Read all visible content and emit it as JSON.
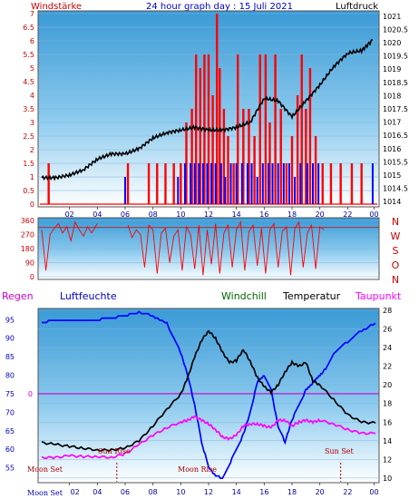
{
  "header": {
    "left": "Windstärke",
    "center": "24 hour graph day : 15 Juli 2021",
    "right": "Luftdruck"
  },
  "mid_labels": [
    "N",
    "W",
    "S",
    "O",
    "N"
  ],
  "bottom_legend": {
    "regen": "Regen",
    "luftfeuchte": "Luftfeuchte",
    "windchill": "Windchill",
    "temperatur": "Temperatur",
    "taupunkt": "Taupunkt"
  },
  "annotations": {
    "sun_rise": "Sun Rise",
    "sun_set": "Sun Set",
    "moon_set_left": "Moon Set",
    "moon_rise": "Moon Rise",
    "moon_set_axis": "Moon Set"
  },
  "colors": {
    "wind": "#ff0000",
    "gust": "#0000ff",
    "pressure": "#000000",
    "humidity": "#0000ff",
    "temperature": "#000000",
    "dewpoint": "#ff00ff",
    "windchill": "#006600",
    "bg_top": "#3fa0d8",
    "bg_bottom": "#ffffff"
  },
  "chart_data": [
    {
      "type": "bar",
      "title": "24 hour graph day : 15 Juli 2021",
      "x_ticks": [
        "02",
        "04",
        "06",
        "08",
        "10",
        "12",
        "14",
        "16",
        "18",
        "20",
        "22",
        "00"
      ],
      "y_left_label": "Windstärke",
      "y_left_ticks": [
        "0",
        "0.5",
        "1",
        "1.5",
        "2",
        "2.5",
        "3",
        "3.5",
        "4",
        "4.5",
        "5",
        "5.5",
        "6",
        "6.5",
        "7"
      ],
      "y_left_lim": [
        0,
        7
      ],
      "y_right_label": "Luftdruck",
      "y_right_ticks": [
        "1014",
        "1014.5",
        "1015",
        "1015.5",
        "1016",
        "1016.5",
        "1017",
        "1017.5",
        "1018",
        "1018.5",
        "1019",
        "1019.5",
        "1020",
        "1020.5",
        "1021"
      ],
      "y_right_lim": [
        1013.8,
        1021.2
      ],
      "pressure_series": {
        "hours": [
          0,
          1,
          2,
          3,
          4,
          5,
          6,
          7,
          8,
          9,
          10,
          11,
          12,
          13,
          14,
          15,
          16,
          17,
          18,
          19,
          20,
          21,
          22,
          23,
          23.8
        ],
        "values": [
          1014.9,
          1014.9,
          1015.0,
          1015.2,
          1015.6,
          1015.8,
          1015.8,
          1016.0,
          1016.4,
          1016.6,
          1016.7,
          1016.8,
          1016.7,
          1016.7,
          1016.8,
          1017.0,
          1017.9,
          1017.8,
          1017.2,
          1017.8,
          1018.4,
          1019.1,
          1019.6,
          1019.7,
          1020.1
        ]
      },
      "wind_red_bars": [
        {
          "hour": 0.5,
          "v": 1.5
        },
        {
          "hour": 6.2,
          "v": 1.5
        },
        {
          "hour": 7.7,
          "v": 1.5
        },
        {
          "hour": 8.3,
          "v": 1.5
        },
        {
          "hour": 8.9,
          "v": 1.5
        },
        {
          "hour": 9.5,
          "v": 1.5
        },
        {
          "hour": 10.0,
          "v": 1.5
        },
        {
          "hour": 10.4,
          "v": 3.0
        },
        {
          "hour": 10.8,
          "v": 3.5
        },
        {
          "hour": 11.1,
          "v": 5.5
        },
        {
          "hour": 11.4,
          "v": 5.0
        },
        {
          "hour": 11.7,
          "v": 5.5
        },
        {
          "hour": 12.0,
          "v": 5.5
        },
        {
          "hour": 12.3,
          "v": 4.0
        },
        {
          "hour": 12.6,
          "v": 7.0
        },
        {
          "hour": 12.8,
          "v": 5.0
        },
        {
          "hour": 13.1,
          "v": 3.5
        },
        {
          "hour": 13.4,
          "v": 2.5
        },
        {
          "hour": 13.8,
          "v": 1.5
        },
        {
          "hour": 14.1,
          "v": 5.5
        },
        {
          "hour": 14.5,
          "v": 3.5
        },
        {
          "hour": 14.9,
          "v": 3.5
        },
        {
          "hour": 15.3,
          "v": 2.5
        },
        {
          "hour": 15.7,
          "v": 5.5
        },
        {
          "hour": 16.1,
          "v": 5.5
        },
        {
          "hour": 16.4,
          "v": 3.0
        },
        {
          "hour": 16.8,
          "v": 5.5
        },
        {
          "hour": 17.2,
          "v": 3.5
        },
        {
          "hour": 17.6,
          "v": 1.5
        },
        {
          "hour": 18.0,
          "v": 2.5
        },
        {
          "hour": 18.4,
          "v": 4.0
        },
        {
          "hour": 18.7,
          "v": 5.5
        },
        {
          "hour": 19.0,
          "v": 3.5
        },
        {
          "hour": 19.3,
          "v": 5.0
        },
        {
          "hour": 19.7,
          "v": 2.5
        },
        {
          "hour": 20.2,
          "v": 1.5
        },
        {
          "hour": 20.8,
          "v": 1.5
        },
        {
          "hour": 21.5,
          "v": 1.5
        },
        {
          "hour": 22.3,
          "v": 1.5
        },
        {
          "hour": 23.0,
          "v": 1.5
        }
      ],
      "wind_blue_bars": [
        {
          "hour": 6.0,
          "v": 1.0
        },
        {
          "hour": 9.8,
          "v": 1.0
        },
        {
          "hour": 10.3,
          "v": 1.5
        },
        {
          "hour": 10.7,
          "v": 1.5
        },
        {
          "hour": 11.0,
          "v": 1.5
        },
        {
          "hour": 11.3,
          "v": 1.5
        },
        {
          "hour": 11.6,
          "v": 1.5
        },
        {
          "hour": 11.9,
          "v": 1.5
        },
        {
          "hour": 12.2,
          "v": 1.5
        },
        {
          "hour": 12.5,
          "v": 1.5
        },
        {
          "hour": 12.9,
          "v": 1.5
        },
        {
          "hour": 13.2,
          "v": 1.0
        },
        {
          "hour": 13.6,
          "v": 1.5
        },
        {
          "hour": 14.0,
          "v": 1.5
        },
        {
          "hour": 14.4,
          "v": 1.5
        },
        {
          "hour": 14.8,
          "v": 1.5
        },
        {
          "hour": 15.1,
          "v": 1.5
        },
        {
          "hour": 15.5,
          "v": 1.0
        },
        {
          "hour": 15.9,
          "v": 1.5
        },
        {
          "hour": 16.3,
          "v": 1.5
        },
        {
          "hour": 16.6,
          "v": 1.5
        },
        {
          "hour": 17.0,
          "v": 1.5
        },
        {
          "hour": 17.4,
          "v": 1.5
        },
        {
          "hour": 17.8,
          "v": 1.5
        },
        {
          "hour": 18.2,
          "v": 1.0
        },
        {
          "hour": 18.6,
          "v": 1.5
        },
        {
          "hour": 19.1,
          "v": 1.5
        },
        {
          "hour": 19.5,
          "v": 1.5
        },
        {
          "hour": 19.9,
          "v": 1.5
        },
        {
          "hour": 23.8,
          "v": 1.5
        }
      ]
    },
    {
      "type": "line",
      "title": "Wind direction",
      "y_ticks": [
        "360",
        "270",
        "180",
        "90",
        "0"
      ],
      "y_lim": [
        0,
        360
      ],
      "reference_line": 315,
      "direction_samples": {
        "hours": [
          0.0,
          0.3,
          0.6,
          0.9,
          1.2,
          1.5,
          1.8,
          2.1,
          2.4,
          2.7,
          3.0,
          3.3,
          3.6,
          4.0,
          6.2,
          6.5,
          6.8,
          7.1,
          7.4,
          7.7,
          8.0,
          8.3,
          8.6,
          8.9,
          9.2,
          9.5,
          9.8,
          10.1,
          10.4,
          10.7,
          11.0,
          11.3,
          11.6,
          11.9,
          12.2,
          12.5,
          12.8,
          13.1,
          13.4,
          13.7,
          14.0,
          14.3,
          14.6,
          14.9,
          15.2,
          15.5,
          15.8,
          16.1,
          16.4,
          16.7,
          17.0,
          17.3,
          17.6,
          17.9,
          18.2,
          18.5,
          18.8,
          19.1,
          19.4,
          19.7,
          20.0,
          20.3
        ],
        "values": [
          300,
          40,
          270,
          310,
          340,
          280,
          320,
          230,
          350,
          300,
          260,
          320,
          280,
          340,
          330,
          250,
          300,
          270,
          60,
          330,
          300,
          20,
          280,
          310,
          90,
          260,
          300,
          40,
          320,
          270,
          50,
          330,
          10,
          300,
          80,
          340,
          20,
          280,
          330,
          60,
          300,
          350,
          40,
          290,
          330,
          70,
          310,
          20,
          300,
          340,
          60,
          290,
          320,
          10,
          310,
          350,
          60,
          280,
          330,
          50,
          320,
          300
        ]
      }
    },
    {
      "type": "line",
      "y_left_ticks": [
        "55",
        "60",
        "65",
        "70",
        "75",
        "80",
        "85",
        "90",
        "95"
      ],
      "y_left_lim": [
        51,
        98
      ],
      "y_right_ticks": [
        "10",
        "12",
        "14",
        "16",
        "18",
        "20",
        "22",
        "24",
        "26",
        "28"
      ],
      "y_right_lim": [
        9.5,
        28.2
      ],
      "zero_label": "0",
      "regen_level": 75,
      "x_ticks": [
        "02",
        "04",
        "06",
        "08",
        "10",
        "12",
        "14",
        "16",
        "18",
        "20",
        "22",
        "00"
      ],
      "sun_rise_hour": 5.4,
      "sun_set_hour": 21.5,
      "series": [
        {
          "name": "Luftfeuchte",
          "axis": "left",
          "hours": [
            0,
            1,
            2,
            3,
            4,
            5,
            6,
            7,
            8,
            9,
            10,
            10.5,
            11,
            11.5,
            12,
            12.5,
            13,
            13.5,
            14,
            14.5,
            15,
            15.5,
            16,
            16.5,
            17,
            17.5,
            18,
            18.5,
            19,
            19.5,
            20,
            20.5,
            21,
            22,
            23,
            24
          ],
          "values": [
            94,
            95,
            95,
            95,
            95,
            95.5,
            96,
            97,
            96,
            94,
            86,
            80,
            72,
            62,
            55,
            53,
            52,
            56,
            60,
            64,
            70,
            78,
            80,
            76,
            66,
            62,
            68,
            72,
            76,
            78,
            80,
            82,
            86,
            89,
            92,
            94
          ]
        },
        {
          "name": "Temperatur",
          "axis": "right",
          "hours": [
            0,
            1,
            2,
            3,
            4,
            5,
            6,
            7,
            8,
            9,
            10,
            10.5,
            11,
            11.5,
            12,
            12.5,
            13,
            13.5,
            14,
            14.5,
            15,
            15.5,
            16,
            16.5,
            17,
            17.5,
            18,
            18.5,
            19,
            19.5,
            20,
            21,
            22,
            23,
            24
          ],
          "values": [
            13.8,
            13.6,
            13.4,
            13.2,
            13.0,
            13.0,
            13.2,
            14.0,
            15.6,
            17.4,
            19.0,
            20.8,
            23.0,
            24.8,
            25.8,
            25.0,
            23.5,
            22.4,
            22.6,
            23.8,
            22.5,
            20.8,
            19.8,
            19.2,
            20.0,
            21.4,
            22.4,
            22.0,
            22.4,
            20.4,
            20.0,
            18.4,
            16.8,
            16.0,
            15.9
          ]
        },
        {
          "name": "Taupunkt",
          "axis": "right",
          "hours": [
            0,
            1,
            2,
            3,
            4,
            5,
            6,
            7,
            8,
            9,
            10,
            10.5,
            11,
            11.5,
            12,
            12.5,
            13,
            13.5,
            14,
            14.5,
            15,
            15.5,
            16,
            16.5,
            17,
            17.5,
            18,
            18.5,
            19,
            19.5,
            20,
            21,
            22,
            23,
            24
          ],
          "values": [
            12.2,
            12.2,
            12.4,
            12.3,
            12.3,
            12.2,
            12.6,
            13.6,
            14.6,
            15.4,
            16.0,
            16.2,
            16.6,
            16.2,
            15.8,
            15.2,
            14.4,
            14.2,
            14.6,
            15.6,
            15.8,
            15.8,
            15.6,
            15.4,
            16.2,
            16.2,
            15.6,
            16.0,
            16.2,
            16.0,
            16.2,
            15.8,
            15.2,
            14.8,
            14.8
          ]
        }
      ]
    }
  ]
}
